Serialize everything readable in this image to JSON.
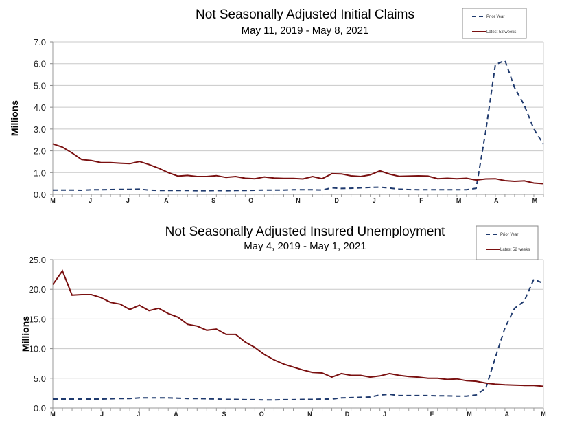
{
  "chart_data": [
    {
      "type": "line",
      "title": "Not Seasonally Adjusted Initial Claims",
      "subtitle": "May 11, 2019  - May 8, 2021",
      "ylabel": "Millions",
      "xlabel": "",
      "ylim": [
        0,
        7
      ],
      "yticks": [
        "0.0",
        "1.0",
        "2.0",
        "3.0",
        "4.0",
        "5.0",
        "6.0",
        "7.0"
      ],
      "grid": true,
      "legend_position": "top-right",
      "month_ticks": [
        {
          "label": "M",
          "week": 0
        },
        {
          "label": "J",
          "week": 3.9
        },
        {
          "label": "J",
          "week": 7.8
        },
        {
          "label": "A",
          "week": 11.8
        },
        {
          "label": "S",
          "week": 16.7
        },
        {
          "label": "O",
          "week": 20.6
        },
        {
          "label": "N",
          "week": 25.5
        },
        {
          "label": "D",
          "week": 29.5
        },
        {
          "label": "J",
          "week": 33.4
        },
        {
          "label": "F",
          "week": 38.3
        },
        {
          "label": "M",
          "week": 42.2
        },
        {
          "label": "A",
          "week": 46.1
        },
        {
          "label": "M",
          "week": 50.1
        }
      ],
      "series": [
        {
          "name": "Prior Year",
          "color": "#1f3a6e",
          "dashed": true,
          "values": [
            0.2,
            0.2,
            0.2,
            0.19,
            0.21,
            0.21,
            0.22,
            0.23,
            0.23,
            0.24,
            0.2,
            0.18,
            0.18,
            0.18,
            0.18,
            0.17,
            0.17,
            0.18,
            0.17,
            0.18,
            0.18,
            0.19,
            0.2,
            0.2,
            0.2,
            0.21,
            0.21,
            0.21,
            0.2,
            0.3,
            0.27,
            0.28,
            0.3,
            0.32,
            0.33,
            0.29,
            0.24,
            0.22,
            0.21,
            0.21,
            0.21,
            0.21,
            0.21,
            0.21,
            0.28,
            2.9,
            5.95,
            6.15,
            4.9,
            4.1,
            3.0,
            2.3
          ]
        },
        {
          "name": "Latest 52 weeks",
          "color": "#7a1010",
          "dashed": false,
          "values": [
            2.32,
            2.17,
            1.9,
            1.6,
            1.55,
            1.46,
            1.46,
            1.43,
            1.41,
            1.51,
            1.37,
            1.2,
            1.0,
            0.84,
            0.87,
            0.82,
            0.82,
            0.86,
            0.78,
            0.82,
            0.74,
            0.72,
            0.8,
            0.75,
            0.73,
            0.73,
            0.71,
            0.82,
            0.72,
            0.95,
            0.94,
            0.85,
            0.82,
            0.9,
            1.08,
            0.93,
            0.83,
            0.84,
            0.85,
            0.84,
            0.72,
            0.74,
            0.72,
            0.74,
            0.66,
            0.71,
            0.72,
            0.63,
            0.6,
            0.62,
            0.52,
            0.49
          ]
        }
      ]
    },
    {
      "type": "line",
      "title": "Not Seasonally Adjusted Insured Unemployment",
      "subtitle": "May 4, 2019 - May 1, 2021",
      "ylabel": "Millions",
      "xlabel": "",
      "ylim": [
        0,
        25
      ],
      "yticks": [
        "0.0",
        "5.0",
        "10.0",
        "15.0",
        "20.0",
        "25.0"
      ],
      "grid": true,
      "legend_position": "top-right",
      "month_ticks": [
        {
          "label": "M",
          "week": 0
        },
        {
          "label": "J",
          "week": 5.1
        },
        {
          "label": "J",
          "week": 8.9
        },
        {
          "label": "A",
          "week": 12.8
        },
        {
          "label": "S",
          "week": 17.8
        },
        {
          "label": "O",
          "week": 21.7
        },
        {
          "label": "N",
          "week": 26.7
        },
        {
          "label": "D",
          "week": 30.6
        },
        {
          "label": "J",
          "week": 34.5
        },
        {
          "label": "F",
          "week": 39.4
        },
        {
          "label": "M",
          "week": 43.3
        },
        {
          "label": "A",
          "week": 47.2
        },
        {
          "label": "M",
          "week": 51
        }
      ],
      "series": [
        {
          "name": "Prior Year",
          "color": "#1f3a6e",
          "dashed": true,
          "values": [
            1.5,
            1.5,
            1.5,
            1.5,
            1.5,
            1.5,
            1.55,
            1.6,
            1.6,
            1.7,
            1.7,
            1.7,
            1.7,
            1.65,
            1.6,
            1.6,
            1.55,
            1.5,
            1.45,
            1.45,
            1.4,
            1.4,
            1.35,
            1.35,
            1.4,
            1.4,
            1.45,
            1.45,
            1.5,
            1.5,
            1.7,
            1.75,
            1.8,
            1.85,
            2.2,
            2.3,
            2.1,
            2.1,
            2.1,
            2.1,
            2.05,
            2.05,
            2.0,
            2.0,
            2.2,
            3.3,
            8.5,
            13.5,
            16.8,
            18.0,
            21.7,
            21.0
          ]
        },
        {
          "name": "Latest 52 weeks",
          "color": "#7a1010",
          "dashed": false,
          "values": [
            20.8,
            23.1,
            19.0,
            19.1,
            19.1,
            18.6,
            17.8,
            17.5,
            16.6,
            17.3,
            16.4,
            16.8,
            15.9,
            15.3,
            14.1,
            13.8,
            13.1,
            13.3,
            12.4,
            12.4,
            11.1,
            10.2,
            9.0,
            8.1,
            7.4,
            6.9,
            6.4,
            6.0,
            5.9,
            5.2,
            5.8,
            5.5,
            5.5,
            5.2,
            5.4,
            5.8,
            5.5,
            5.3,
            5.2,
            5.0,
            5.0,
            4.8,
            4.9,
            4.6,
            4.5,
            4.2,
            4.0,
            3.9,
            3.85,
            3.8,
            3.8,
            3.65
          ]
        }
      ]
    }
  ]
}
